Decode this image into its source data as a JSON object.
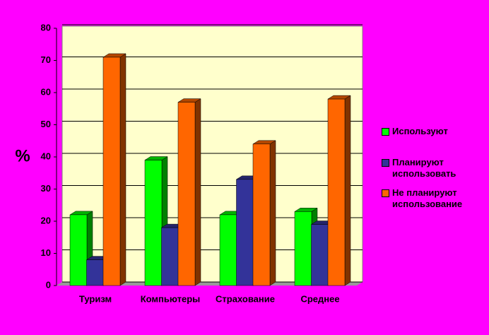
{
  "chart_data": {
    "type": "bar",
    "y_label": "%",
    "categories": [
      "Туризм",
      "Компьютеры",
      "Страхование",
      "Среднее"
    ],
    "series": [
      {
        "name": "Используют",
        "color": "#00ff00",
        "values": [
          22,
          39,
          22,
          23
        ]
      },
      {
        "name": "Планируют использовать",
        "color": "#333399",
        "values": [
          8,
          18,
          33,
          19
        ]
      },
      {
        "name": "Не планируют использование",
        "color": "#ff6600",
        "values": [
          71,
          57,
          44,
          58
        ]
      }
    ],
    "ylim": [
      0,
      80
    ],
    "yticks": [
      0,
      10,
      20,
      30,
      40,
      50,
      60,
      70,
      80
    ],
    "grid": true
  }
}
